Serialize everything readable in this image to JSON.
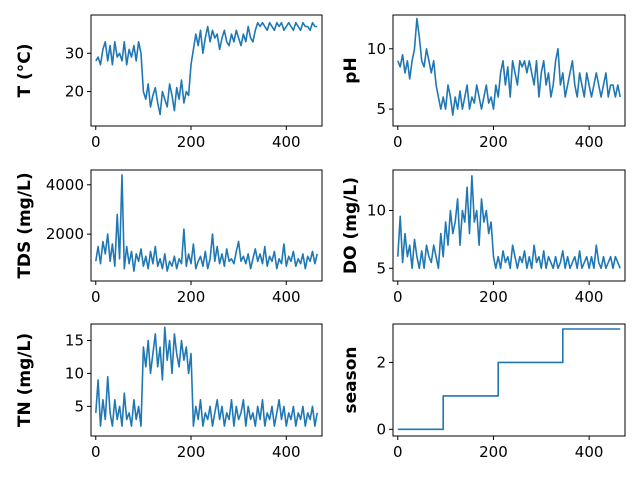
{
  "line_color": "#1f77b4",
  "chart_data": [
    {
      "type": "line",
      "ylabel": "T  (°C)",
      "xlim": [
        -10,
        475
      ],
      "ylim": [
        11,
        40
      ],
      "xticks": [
        0,
        200,
        400
      ],
      "xtick_labels": [
        "0",
        "200",
        "400"
      ],
      "yticks": [
        20,
        30
      ],
      "ytick_labels": [
        "20",
        "30"
      ],
      "series": [
        {
          "x": [
            0,
            5,
            10,
            15,
            20,
            25,
            30,
            35,
            40,
            45,
            50,
            55,
            60,
            65,
            70,
            75,
            80,
            85,
            90,
            95,
            100,
            105,
            110,
            115,
            120,
            125,
            130,
            135,
            140,
            145,
            150,
            155,
            160,
            165,
            170,
            175,
            180,
            185,
            190,
            195,
            200,
            205,
            210,
            215,
            220,
            225,
            230,
            235,
            240,
            245,
            250,
            255,
            260,
            265,
            270,
            275,
            280,
            285,
            290,
            295,
            300,
            305,
            310,
            315,
            320,
            325,
            330,
            335,
            340,
            345,
            350,
            355,
            360,
            365,
            370,
            375,
            380,
            385,
            390,
            395,
            400,
            405,
            410,
            415,
            420,
            425,
            430,
            435,
            440,
            445,
            450,
            455,
            460,
            465
          ],
          "y": [
            28,
            29,
            27,
            31,
            33,
            28,
            32,
            27,
            33,
            29,
            30,
            28,
            33,
            27,
            31,
            29,
            32,
            28,
            33,
            30,
            20,
            18,
            22,
            16,
            19,
            21,
            17,
            14,
            20,
            18,
            16,
            22,
            19,
            15,
            21,
            18,
            23,
            17,
            20,
            19,
            27,
            31,
            35,
            32,
            36,
            30,
            34,
            37,
            33,
            36,
            34,
            35,
            31,
            34,
            36,
            33,
            32,
            35,
            33,
            36,
            34,
            32,
            35,
            33,
            37,
            34,
            33,
            36,
            38,
            37,
            38,
            37,
            36,
            38,
            37,
            36,
            38,
            37,
            38,
            36,
            37,
            38,
            37,
            36,
            38,
            37,
            36,
            38,
            37,
            37,
            36,
            38,
            37,
            37
          ]
        }
      ]
    },
    {
      "type": "line",
      "ylabel": "pH",
      "xlim": [
        -10,
        475
      ],
      "ylim": [
        3.6,
        12.8
      ],
      "xticks": [
        0,
        200,
        400
      ],
      "xtick_labels": [
        "0",
        "200",
        "400"
      ],
      "yticks": [
        5,
        10
      ],
      "ytick_labels": [
        "5",
        "10"
      ],
      "series": [
        {
          "x": [
            0,
            5,
            10,
            15,
            20,
            25,
            30,
            35,
            40,
            45,
            50,
            55,
            60,
            65,
            70,
            75,
            80,
            85,
            90,
            95,
            100,
            105,
            110,
            115,
            120,
            125,
            130,
            135,
            140,
            145,
            150,
            155,
            160,
            165,
            170,
            175,
            180,
            185,
            190,
            195,
            200,
            205,
            210,
            215,
            220,
            225,
            230,
            235,
            240,
            245,
            250,
            255,
            260,
            265,
            270,
            275,
            280,
            285,
            290,
            295,
            300,
            305,
            310,
            315,
            320,
            325,
            330,
            335,
            340,
            345,
            350,
            355,
            360,
            365,
            370,
            375,
            380,
            385,
            390,
            395,
            400,
            405,
            410,
            415,
            420,
            425,
            430,
            435,
            440,
            445,
            450,
            455,
            460,
            465
          ],
          "y": [
            9,
            8.5,
            9.5,
            8,
            9,
            7.5,
            9,
            10,
            12.5,
            11,
            9,
            8.5,
            10,
            9,
            8,
            9,
            7,
            6,
            5,
            6,
            5,
            7,
            6,
            4.5,
            6,
            5,
            6.5,
            5,
            6,
            7,
            5,
            6,
            5.5,
            7,
            6,
            5,
            6,
            7,
            5.5,
            6,
            5,
            7,
            6,
            8,
            9,
            7,
            8.5,
            6,
            9,
            8,
            7,
            9,
            8.5,
            9,
            8,
            9,
            8,
            7,
            9,
            6,
            8,
            9,
            7,
            8,
            6,
            7,
            9,
            10,
            7,
            8,
            6,
            7,
            8,
            9,
            7,
            6,
            8,
            7,
            6,
            8,
            7,
            6,
            7,
            8,
            7,
            6,
            7,
            8,
            6,
            7,
            7,
            6,
            7,
            6
          ]
        }
      ]
    },
    {
      "type": "line",
      "ylabel": "TDS (mg/L)",
      "xlim": [
        -10,
        475
      ],
      "ylim": [
        100,
        4600
      ],
      "xticks": [
        0,
        200,
        400
      ],
      "xtick_labels": [
        "0",
        "200",
        "400"
      ],
      "yticks": [
        2000,
        4000
      ],
      "ytick_labels": [
        "2000",
        "4000"
      ],
      "series": [
        {
          "x": [
            0,
            5,
            10,
            15,
            20,
            25,
            30,
            35,
            40,
            45,
            50,
            55,
            60,
            65,
            70,
            75,
            80,
            85,
            90,
            95,
            100,
            105,
            110,
            115,
            120,
            125,
            130,
            135,
            140,
            145,
            150,
            155,
            160,
            165,
            170,
            175,
            180,
            185,
            190,
            195,
            200,
            205,
            210,
            215,
            220,
            225,
            230,
            235,
            240,
            245,
            250,
            255,
            260,
            265,
            270,
            275,
            280,
            285,
            290,
            295,
            300,
            305,
            310,
            315,
            320,
            325,
            330,
            335,
            340,
            345,
            350,
            355,
            360,
            365,
            370,
            375,
            380,
            385,
            390,
            395,
            400,
            405,
            410,
            415,
            420,
            425,
            430,
            435,
            440,
            445,
            450,
            455,
            460,
            465
          ],
          "y": [
            900,
            1500,
            800,
            1700,
            1200,
            2000,
            900,
            1600,
            700,
            2800,
            1000,
            4400,
            600,
            1500,
            800,
            1300,
            500,
            1200,
            900,
            1400,
            700,
            1100,
            600,
            1300,
            800,
            1500,
            700,
            1000,
            600,
            1200,
            500,
            900,
            700,
            1100,
            600,
            1000,
            800,
            2200,
            700,
            1200,
            800,
            1600,
            600,
            900,
            1100,
            700,
            1300,
            600,
            1000,
            2000,
            900,
            1500,
            800,
            1200,
            700,
            1400,
            900,
            1000,
            800,
            1300,
            1700,
            900,
            1100,
            800,
            1200,
            600,
            1000,
            1400,
            900,
            1200,
            800,
            1500,
            700,
            1100,
            900,
            1300,
            600,
            1000,
            800,
            1600,
            700,
            1100,
            900,
            1300,
            700,
            1000,
            800,
            1200,
            600,
            1100,
            900,
            1300,
            800,
            1200
          ]
        }
      ]
    },
    {
      "type": "line",
      "ylabel": "DO (mg/L)",
      "xlim": [
        -10,
        475
      ],
      "ylim": [
        3.9,
        13.5
      ],
      "xticks": [
        0,
        200,
        400
      ],
      "xtick_labels": [
        "0",
        "200",
        "400"
      ],
      "yticks": [
        5,
        10
      ],
      "ytick_labels": [
        "5",
        "10"
      ],
      "series": [
        {
          "x": [
            0,
            5,
            10,
            15,
            20,
            25,
            30,
            35,
            40,
            45,
            50,
            55,
            60,
            65,
            70,
            75,
            80,
            85,
            90,
            95,
            100,
            105,
            110,
            115,
            120,
            125,
            130,
            135,
            140,
            145,
            150,
            155,
            160,
            165,
            170,
            175,
            180,
            185,
            190,
            195,
            200,
            205,
            210,
            215,
            220,
            225,
            230,
            235,
            240,
            245,
            250,
            255,
            260,
            265,
            270,
            275,
            280,
            285,
            290,
            295,
            300,
            305,
            310,
            315,
            320,
            325,
            330,
            335,
            340,
            345,
            350,
            355,
            360,
            365,
            370,
            375,
            380,
            385,
            390,
            395,
            400,
            405,
            410,
            415,
            420,
            425,
            430,
            435,
            440,
            445,
            450,
            455,
            460,
            465
          ],
          "y": [
            6,
            9.5,
            5.5,
            8,
            6,
            7,
            5,
            7.5,
            6,
            5,
            6.5,
            5,
            7,
            6,
            5.5,
            7,
            6,
            5,
            8,
            6,
            9,
            7,
            10,
            8,
            9,
            11,
            7,
            10,
            9,
            12,
            8,
            13,
            9,
            10,
            7,
            11,
            9,
            10,
            8,
            9,
            6,
            5,
            6,
            5,
            6.5,
            5.5,
            6,
            5,
            7,
            6,
            5,
            6,
            5.5,
            6.5,
            5,
            6,
            5,
            7,
            5.5,
            6,
            5,
            6.5,
            5,
            6,
            5.5,
            5,
            6,
            5,
            5.5,
            6.5,
            5,
            6,
            5,
            5.5,
            6,
            5,
            6.5,
            5,
            5.5,
            6,
            5,
            6,
            5,
            7,
            5.5,
            5,
            6,
            5,
            5.5,
            6,
            5,
            6,
            5.5,
            5
          ]
        }
      ]
    },
    {
      "type": "line",
      "ylabel": "TN (mg/L)",
      "xlim": [
        -10,
        475
      ],
      "ylim": [
        0.5,
        17.5
      ],
      "xticks": [
        0,
        200,
        400
      ],
      "xtick_labels": [
        "0",
        "200",
        "400"
      ],
      "yticks": [
        5,
        10,
        15
      ],
      "ytick_labels": [
        "5",
        "10",
        "15"
      ],
      "series": [
        {
          "x": [
            0,
            5,
            10,
            15,
            20,
            25,
            30,
            35,
            40,
            45,
            50,
            55,
            60,
            65,
            70,
            75,
            80,
            85,
            90,
            95,
            100,
            105,
            110,
            115,
            120,
            125,
            130,
            135,
            140,
            145,
            150,
            155,
            160,
            165,
            170,
            175,
            180,
            185,
            190,
            195,
            200,
            205,
            210,
            215,
            220,
            225,
            230,
            235,
            240,
            245,
            250,
            255,
            260,
            265,
            270,
            275,
            280,
            285,
            290,
            295,
            300,
            305,
            310,
            315,
            320,
            325,
            330,
            335,
            340,
            345,
            350,
            355,
            360,
            365,
            370,
            375,
            380,
            385,
            390,
            395,
            400,
            405,
            410,
            415,
            420,
            425,
            430,
            435,
            440,
            445,
            450,
            455,
            460,
            465
          ],
          "y": [
            4,
            9,
            2,
            6,
            3,
            9.5,
            4,
            2,
            6,
            3,
            5,
            2,
            7,
            3,
            4,
            2,
            6,
            3,
            5,
            2,
            14,
            11,
            15,
            10,
            13,
            16,
            11,
            14,
            9,
            17,
            12,
            15,
            10,
            16,
            13,
            11,
            15,
            12,
            14,
            10,
            13,
            2,
            5,
            3,
            6,
            2,
            4,
            3,
            5,
            2,
            4,
            6,
            3,
            5,
            2,
            4,
            3,
            6,
            2,
            5,
            3,
            4,
            6,
            2,
            5,
            3,
            4,
            2,
            5,
            3,
            6,
            2,
            4,
            3,
            5,
            2,
            4,
            6,
            3,
            5,
            2,
            4,
            3,
            5,
            2,
            4,
            3,
            5,
            2,
            4,
            3,
            5,
            2,
            4
          ]
        }
      ]
    },
    {
      "type": "line",
      "ylabel": "season",
      "xlim": [
        -10,
        475
      ],
      "ylim": [
        -0.2,
        3.15
      ],
      "xticks": [
        0,
        200,
        400
      ],
      "xtick_labels": [
        "0",
        "200",
        "400"
      ],
      "yticks": [
        0,
        2
      ],
      "ytick_labels": [
        "0",
        "2"
      ],
      "series": [
        {
          "x": [
            0,
            95,
            95,
            210,
            210,
            345,
            345,
            465
          ],
          "y": [
            0,
            0,
            1,
            1,
            2,
            2,
            3,
            3
          ]
        }
      ]
    }
  ]
}
